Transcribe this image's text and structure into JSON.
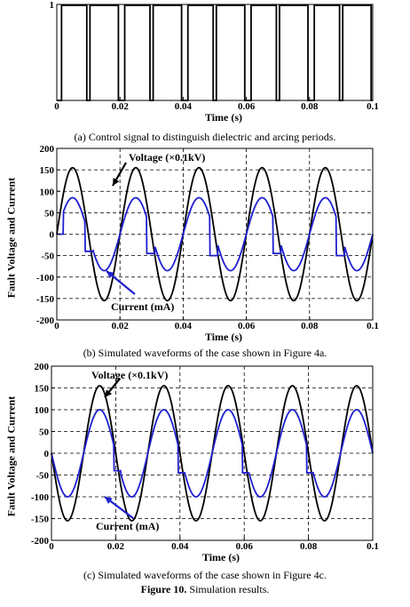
{
  "figure": {
    "caption_label": "Figure 10.",
    "caption_text": "Simulation results."
  },
  "chart_data": [
    {
      "id": "a",
      "type": "line",
      "caption": "(a) Control signal to distinguish dielectric and arcing periods.",
      "xlabel": "Time (s)",
      "ylabel": "",
      "xlim": [
        0,
        0.1
      ],
      "ylim": [
        0,
        1
      ],
      "xticks": [
        0,
        0.02,
        0.04,
        0.06,
        0.08,
        0.1
      ],
      "xtick_labels": [
        "0",
        "0.02",
        "0.04",
        "0.06",
        "0.08",
        "0.1"
      ],
      "yticks": [
        1
      ],
      "ytick_labels": [
        "1"
      ],
      "grid": false,
      "series": [
        {
          "color": "#000000",
          "high_intervals": [
            [
              0.0015,
              0.0095
            ],
            [
              0.0105,
              0.0195
            ],
            [
              0.0215,
              0.0295
            ],
            [
              0.0305,
              0.0395
            ],
            [
              0.0415,
              0.0495
            ],
            [
              0.0505,
              0.0595
            ],
            [
              0.0615,
              0.0695
            ],
            [
              0.0705,
              0.0795
            ],
            [
              0.0815,
              0.0895
            ],
            [
              0.0905,
              0.0995
            ]
          ]
        }
      ]
    },
    {
      "id": "b",
      "type": "line",
      "caption": "(b) Simulated waveforms of the case shown in Figure 4a.",
      "xlabel": "Time (s)",
      "ylabel": "Fault Voltage and Current",
      "xlim": [
        0,
        0.1
      ],
      "ylim": [
        -200,
        200
      ],
      "xticks": [
        0,
        0.02,
        0.04,
        0.06,
        0.08,
        0.1
      ],
      "xtick_labels": [
        "0",
        "0.02",
        "0.04",
        "0.06",
        "0.08",
        "0.1"
      ],
      "yticks": [
        -200,
        -150,
        -100,
        -50,
        0,
        50,
        100,
        150,
        200
      ],
      "ytick_labels": [
        "-200",
        "-150",
        "-100",
        "-50",
        "0",
        "50",
        "100",
        "150",
        "200"
      ],
      "grid": true,
      "annotations": [
        {
          "text": "Voltage (×0.1kV)",
          "target": "voltage"
        },
        {
          "text": "Current (mA)",
          "target": "current"
        }
      ],
      "series": [
        {
          "color": "#000000",
          "kind": "voltage",
          "amplitude": 155,
          "frequency_hz": 50,
          "phase_zero_s": 0
        },
        {
          "color": "#1f1fd0",
          "kind": "current",
          "amplitude": 85,
          "frequency_hz": 50,
          "phase_zero_s": 0,
          "flat_intervals": [
            [
              0,
              0.002
            ],
            [
              0.009,
              0.0115
            ],
            [
              0.0285,
              0.031
            ],
            [
              0.0485,
              0.051
            ],
            [
              0.0685,
              0.071
            ],
            [
              0.0885,
              0.091
            ]
          ],
          "flat_levels": [
            0,
            -40,
            -45,
            -50,
            -45,
            -50
          ]
        }
      ]
    },
    {
      "id": "c",
      "type": "line",
      "caption": "(c) Simulated waveforms of the case shown in Figure 4c.",
      "xlabel": "Time (s)",
      "ylabel": "Fault Voltage and Current",
      "xlim": [
        0,
        0.1
      ],
      "ylim": [
        -200,
        200
      ],
      "xticks": [
        0,
        0.02,
        0.04,
        0.06,
        0.08,
        0.1
      ],
      "xtick_labels": [
        "0",
        "0.02",
        "0.04",
        "0.06",
        "0.08",
        "0.1"
      ],
      "yticks": [
        -200,
        -150,
        -100,
        -50,
        0,
        50,
        100,
        150,
        200
      ],
      "ytick_labels": [
        "-200",
        "-150",
        "-100",
        "-50",
        "0",
        "50",
        "100",
        "150",
        "200"
      ],
      "grid": true,
      "annotations": [
        {
          "text": "Voltage (×0.1kV)",
          "target": "voltage"
        },
        {
          "text": "Current (mA)",
          "target": "current"
        }
      ],
      "series": [
        {
          "color": "#000000",
          "kind": "voltage",
          "amplitude": 155,
          "frequency_hz": 50,
          "phase_zero_s": 0.01
        },
        {
          "color": "#1f1fd0",
          "kind": "current",
          "amplitude": 100,
          "frequency_hz": 50,
          "phase_zero_s": 0.01,
          "flat_intervals": [
            [
              0.0195,
              0.0215
            ],
            [
              0.0395,
              0.0415
            ],
            [
              0.0595,
              0.0615
            ],
            [
              0.0795,
              0.0815
            ]
          ],
          "flat_levels": [
            -40,
            -45,
            -45,
            -45
          ]
        }
      ]
    }
  ]
}
